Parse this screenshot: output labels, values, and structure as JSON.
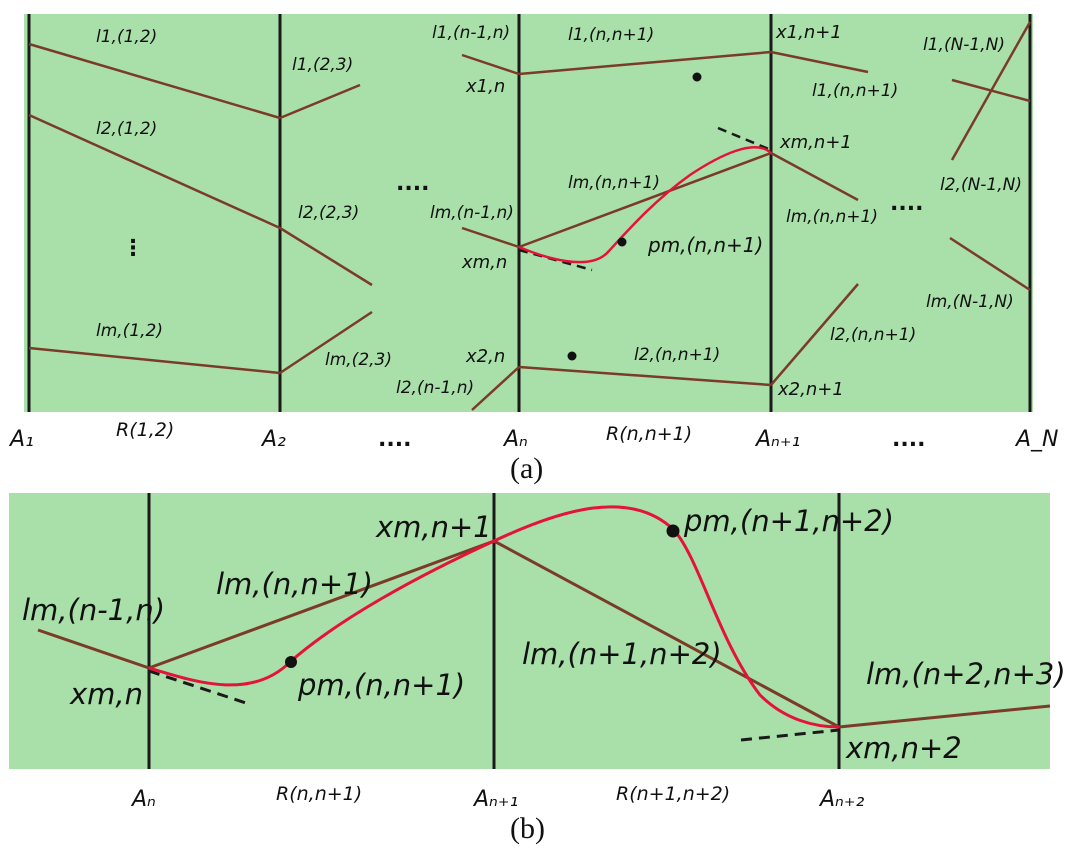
{
  "colors": {
    "background": "#a9dfa9",
    "axis_line": "#1a1a1a",
    "segment": "#7a3b28",
    "curve": "#e4133a",
    "point": "#111111"
  },
  "panel_a": {
    "caption": "(a)",
    "axis_labels": {
      "a1": "A₁",
      "a2": "A₂",
      "an": "Aₙ",
      "an1": "Aₙ₊₁",
      "aN": "A_N"
    },
    "ellipsis": "....",
    "vertical_ellipsis": "⋮",
    "region_labels": {
      "r12": "R(1,2)",
      "rnn1": "R(n,n+1)"
    },
    "segment_labels": {
      "l1_12": "l1,(1,2)",
      "l2_12": "l2,(1,2)",
      "lm_12": "lm,(1,2)",
      "l1_23": "l1,(2,3)",
      "l2_23": "l2,(2,3)",
      "lm_23": "lm,(2,3)",
      "l1_n1n": "l1,(n-1,n)",
      "lm_n1n": "lm,(n-1,n)",
      "l2_n1n": "l2,(n-1,n)",
      "l1_nn1": "l1,(n,n+1)",
      "lm_nn1": "lm,(n,n+1)",
      "l2_nn1": "l2,(n,n+1)",
      "l1_nn1_r": "l1,(n,n+1)",
      "lm_nn1_r": "lm,(n,n+1)",
      "l2_nn1_r": "l2,(n,n+1)",
      "l1_N": "l1,(N-1,N)",
      "l2_N": "l2,(N-1,N)",
      "lm_N": "lm,(N-1,N)"
    },
    "point_labels": {
      "x1n": "x1,n",
      "xmn": "xm,n",
      "x2n": "x2,n",
      "x1n1": "x1,n+1",
      "xmn1": "xm,n+1",
      "x2n1": "x2,n+1",
      "pm": "pm,(n,n+1)"
    }
  },
  "panel_b": {
    "caption": "(b)",
    "axis_labels": {
      "an": "Aₙ",
      "an1": "Aₙ₊₁",
      "an2": "Aₙ₊₂"
    },
    "region_labels": {
      "rnn1": "R(n,n+1)",
      "rn1n2": "R(n+1,n+2)"
    },
    "segment_labels": {
      "lm_n1n": "lm,(n-1,n)",
      "lm_nn1": "lm,(n,n+1)",
      "lm_n1n2": "lm,(n+1,n+2)",
      "lm_n2n3": "lm,(n+2,n+3)"
    },
    "point_labels": {
      "xmn": "xm,n",
      "xmn1": "xm,n+1",
      "xmn2": "xm,n+2",
      "pm1": "pm,(n,n+1)",
      "pm2": "pm,(n+1,n+2)"
    }
  }
}
